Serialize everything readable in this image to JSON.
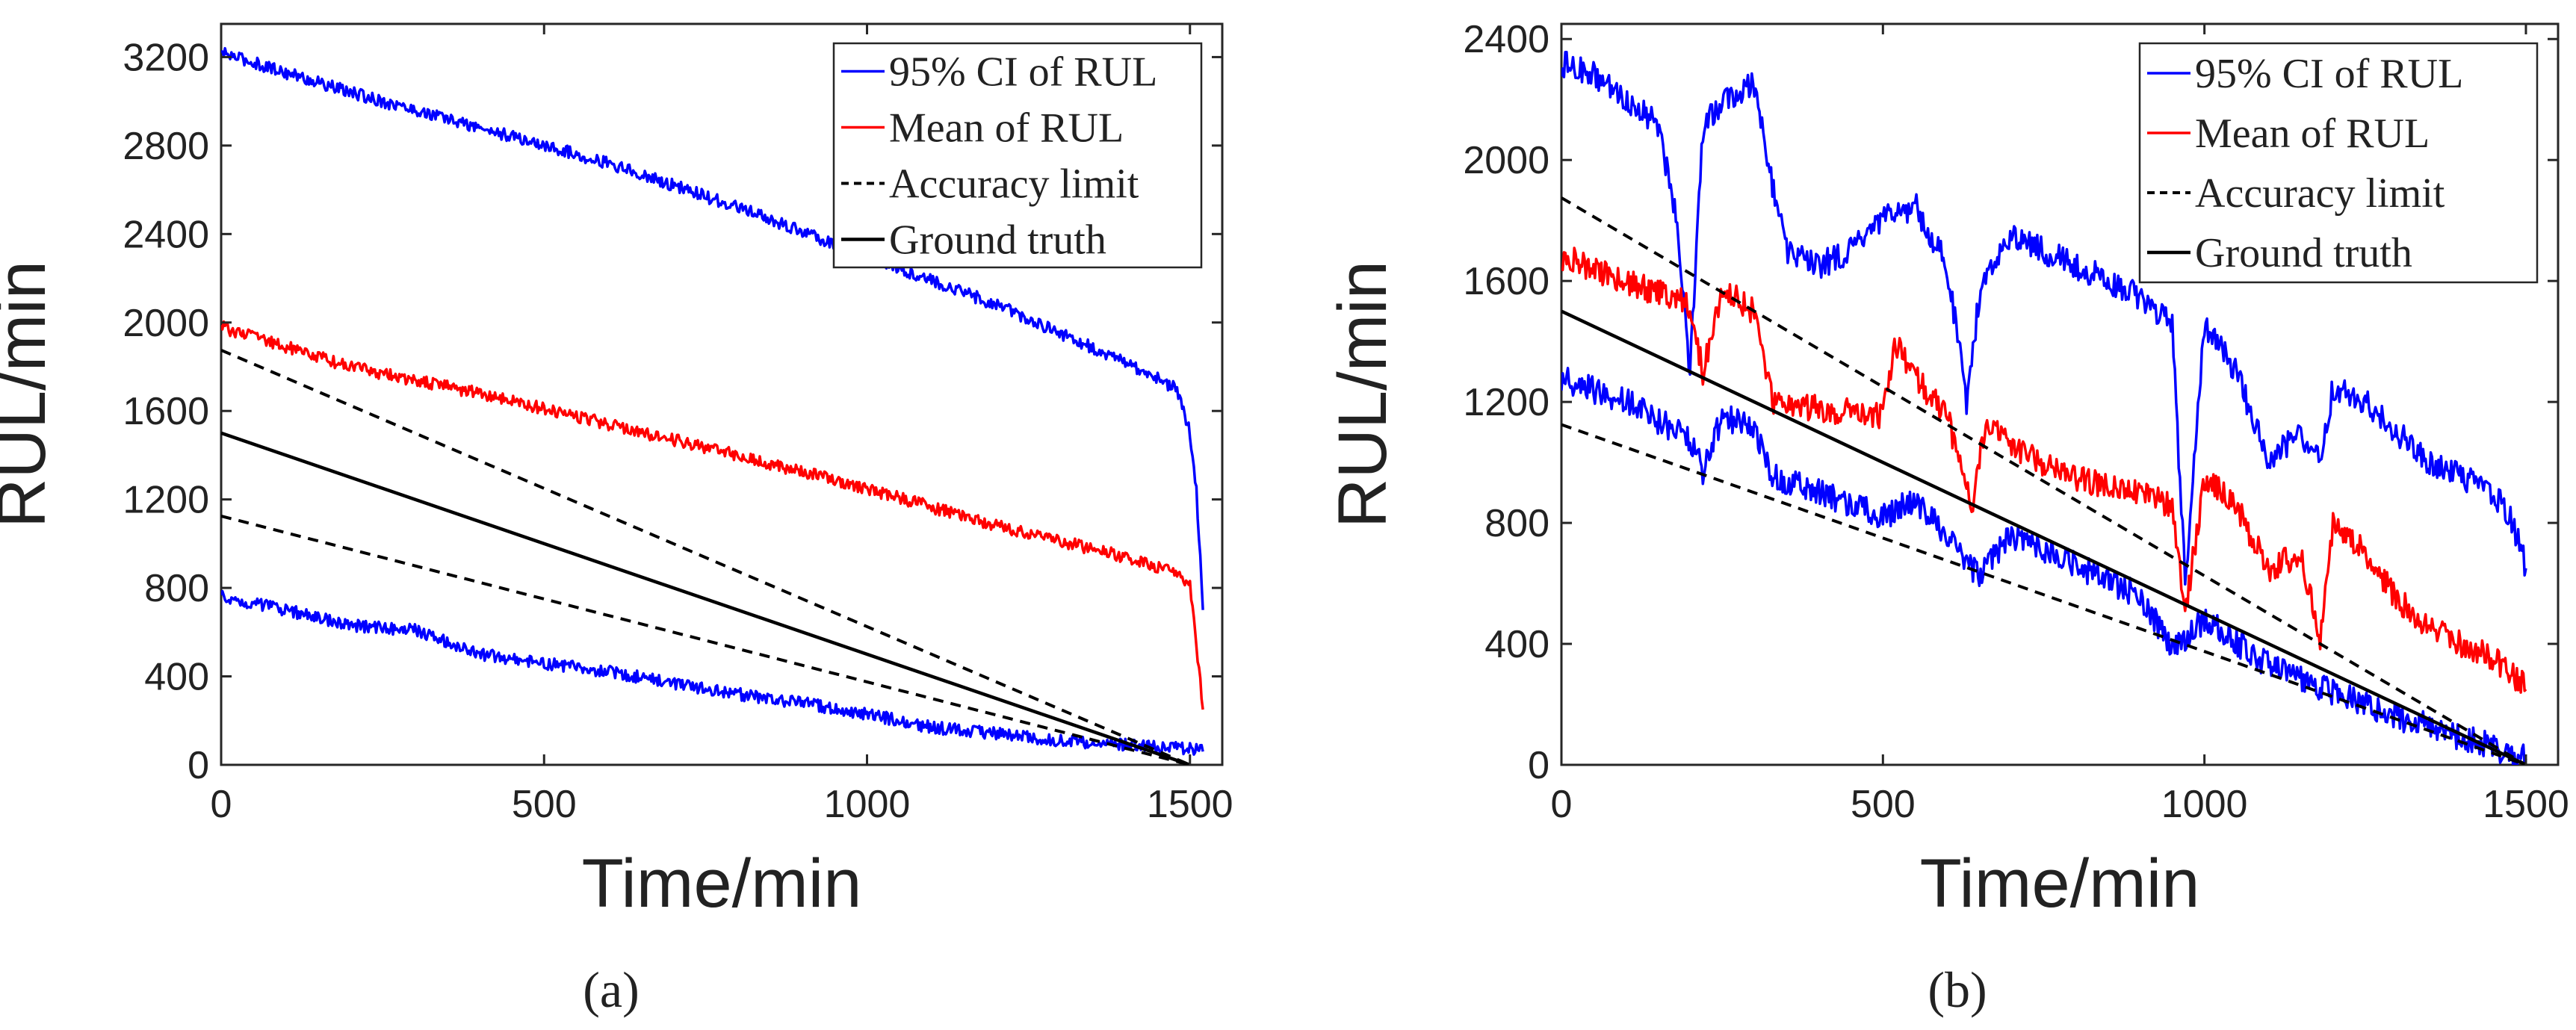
{
  "colors": {
    "ci": "#0000ff",
    "mean": "#ff0000",
    "accuracy": "#000000",
    "truth": "#000000"
  },
  "chart_data": [
    {
      "type": "line",
      "panel": "a",
      "caption": "(a)",
      "xlabel": "Time/min",
      "ylabel": "RUL/min",
      "xlim": [
        0,
        1550
      ],
      "ylim": [
        0,
        3350
      ],
      "xticks": [
        0,
        500,
        1000,
        1500
      ],
      "yticks": [
        0,
        400,
        800,
        1200,
        1600,
        2000,
        2400,
        2800,
        3200
      ],
      "legend_position": "top-right",
      "legend": [
        "95% CI of RUL",
        "Mean of RUL",
        "Accuracy limit",
        "Ground truth"
      ],
      "series": [
        {
          "name": "95% CI of RUL (upper)",
          "legend_index": 0,
          "style": "ci",
          "x": [
            0,
            200,
            400,
            600,
            800,
            1000,
            1200,
            1400,
            1480,
            1500,
            1510,
            1520
          ],
          "y": [
            3220,
            3040,
            2880,
            2720,
            2520,
            2300,
            2080,
            1820,
            1700,
            1500,
            1250,
            700
          ]
        },
        {
          "name": "95% CI of RUL (lower)",
          "legend_index": 0,
          "style": "ci",
          "x": [
            0,
            100,
            200,
            300,
            400,
            500,
            600,
            700,
            800,
            900,
            1000,
            1100,
            1200,
            1300,
            1400,
            1500,
            1520
          ],
          "y": [
            760,
            700,
            630,
            610,
            500,
            460,
            420,
            370,
            320,
            280,
            230,
            170,
            140,
            110,
            90,
            75,
            60
          ]
        },
        {
          "name": "Mean of RUL",
          "legend_index": 1,
          "style": "mean",
          "x": [
            0,
            200,
            400,
            600,
            800,
            1000,
            1200,
            1400,
            1480,
            1500,
            1510,
            1520
          ],
          "y": [
            1980,
            1800,
            1680,
            1540,
            1400,
            1250,
            1080,
            940,
            870,
            820,
            550,
            250
          ]
        },
        {
          "name": "Accuracy limit (upper)",
          "legend_index": 2,
          "style": "accuracy",
          "x": [
            0,
            1500
          ],
          "y": [
            1875,
            0
          ]
        },
        {
          "name": "Accuracy limit (lower)",
          "legend_index": 2,
          "style": "accuracy",
          "x": [
            0,
            1500
          ],
          "y": [
            1125,
            0
          ]
        },
        {
          "name": "Ground truth",
          "legend_index": 3,
          "style": "truth",
          "x": [
            0,
            1500
          ],
          "y": [
            1500,
            0
          ]
        }
      ]
    },
    {
      "type": "line",
      "panel": "b",
      "caption": "(b)",
      "xlabel": "Time/min",
      "ylabel": "RUL/min",
      "xlim": [
        0,
        1550
      ],
      "ylim": [
        0,
        2450
      ],
      "xticks": [
        0,
        500,
        1000,
        1500
      ],
      "yticks": [
        0,
        400,
        800,
        1200,
        1600,
        2000,
        2400
      ],
      "legend_position": "top-right",
      "legend": [
        "95% CI of RUL",
        "Mean of RUL",
        "Accuracy limit",
        "Ground truth"
      ],
      "series": [
        {
          "name": "95% CI of RUL (upper)",
          "legend_index": 0,
          "style": "ci",
          "x": [
            0,
            50,
            100,
            150,
            180,
            200,
            220,
            250,
            300,
            330,
            350,
            400,
            450,
            500,
            550,
            600,
            630,
            650,
            680,
            700,
            800,
            900,
            950,
            970,
            1000,
            1050,
            1100,
            1150,
            1180,
            1200,
            1250,
            1300,
            1350,
            1400,
            1450,
            1480,
            1500
          ],
          "y": [
            2320,
            2280,
            2200,
            2120,
            1800,
            1300,
            2100,
            2200,
            2250,
            1900,
            1700,
            1650,
            1700,
            1800,
            1850,
            1650,
            1200,
            1550,
            1700,
            1750,
            1650,
            1550,
            1450,
            600,
            1450,
            1300,
            1000,
            1100,
            1000,
            1250,
            1200,
            1100,
            1000,
            950,
            900,
            800,
            650
          ]
        },
        {
          "name": "95% CI of RUL (lower)",
          "legend_index": 0,
          "style": "ci",
          "x": [
            0,
            100,
            200,
            220,
            250,
            300,
            330,
            400,
            500,
            550,
            600,
            650,
            700,
            800,
            900,
            950,
            1000,
            1100,
            1200,
            1300,
            1400,
            1450,
            1500
          ],
          "y": [
            1280,
            1200,
            1080,
            970,
            1150,
            1120,
            950,
            900,
            820,
            880,
            750,
            620,
            760,
            660,
            560,
            380,
            480,
            330,
            240,
            160,
            90,
            60,
            20
          ]
        },
        {
          "name": "Mean of RUL",
          "legend_index": 1,
          "style": "mean",
          "x": [
            0,
            100,
            200,
            220,
            250,
            300,
            330,
            400,
            500,
            520,
            550,
            600,
            640,
            660,
            700,
            800,
            900,
            950,
            970,
            1000,
            1050,
            1100,
            1150,
            1180,
            1200,
            1250,
            1300,
            1350,
            1400,
            1450,
            1480,
            1500
          ],
          "y": [
            1680,
            1600,
            1520,
            1300,
            1570,
            1500,
            1200,
            1180,
            1150,
            1400,
            1280,
            1150,
            850,
            1150,
            1050,
            950,
            900,
            850,
            500,
            950,
            850,
            650,
            700,
            400,
            800,
            700,
            550,
            450,
            400,
            350,
            300,
            250
          ]
        },
        {
          "name": "Accuracy limit (upper)",
          "legend_index": 2,
          "style": "accuracy",
          "x": [
            0,
            1500
          ],
          "y": [
            1875,
            0
          ]
        },
        {
          "name": "Accuracy limit (lower)",
          "legend_index": 2,
          "style": "accuracy",
          "x": [
            0,
            1500
          ],
          "y": [
            1125,
            0
          ]
        },
        {
          "name": "Ground truth",
          "legend_index": 3,
          "style": "truth",
          "x": [
            0,
            1500
          ],
          "y": [
            1500,
            0
          ]
        }
      ]
    }
  ]
}
